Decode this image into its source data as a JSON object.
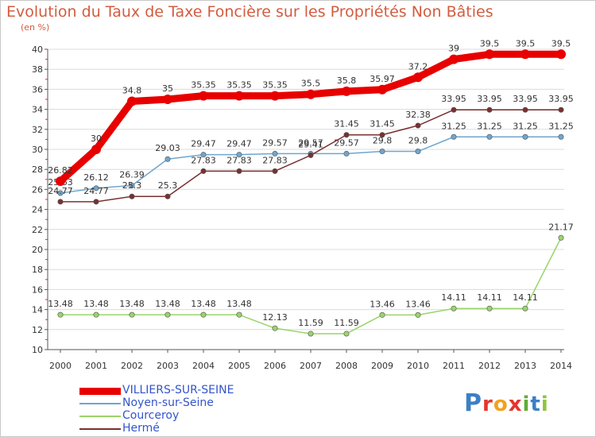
{
  "header": {
    "title": "Evolution du Taux de Taxe Foncière sur les Propriétés Non Bâties",
    "unit": "(en %)"
  },
  "logo": {
    "letters": [
      "P",
      "r",
      "o",
      "x",
      "i",
      "t",
      "i"
    ],
    "colors": [
      "#3d7fc6",
      "#e4352b",
      "#f2a21b",
      "#e4352b",
      "#5dae36",
      "#3d7fc6",
      "#8fc43f"
    ]
  },
  "chart_data": {
    "type": "line",
    "title": "Evolution du Taux de Taxe Foncière sur les Propriétés Non Bâties",
    "ylabel": "(en %)",
    "xlabel": "",
    "categories": [
      "2000",
      "2001",
      "2002",
      "2003",
      "2004",
      "2005",
      "2006",
      "2007",
      "2008",
      "2009",
      "2010",
      "2011",
      "2012",
      "2013",
      "2014"
    ],
    "yticks": [
      "10",
      "12",
      "14",
      "16",
      "18",
      "20",
      "22",
      "24",
      "26",
      "28",
      "30",
      "32",
      "34",
      "36",
      "38",
      "40"
    ],
    "ylim": [
      10,
      40
    ],
    "grid": "horizontal",
    "legend_position": "bottom-left",
    "series": [
      {
        "name": "VILLIERS-SUR-SEINE",
        "color": "#e80000",
        "values": [
          26.82,
          30,
          34.8,
          35,
          35.35,
          35.35,
          35.35,
          35.5,
          35.8,
          35.97,
          37.2,
          39,
          39.5,
          39.5,
          39.5
        ],
        "labels": [
          "26.82",
          "30",
          "34.8",
          "35",
          "35.35",
          "35.35",
          "35.35",
          "35.5",
          "35.8",
          "35.97",
          "37.2",
          "39",
          "39.5",
          "39.5",
          "39.5"
        ]
      },
      {
        "name": "Noyen-sur-Seine",
        "color": "#6fa6cd",
        "values": [
          25.63,
          26.12,
          26.39,
          29.03,
          29.47,
          29.47,
          29.57,
          29.57,
          29.57,
          29.8,
          29.8,
          31.25,
          31.25,
          31.25,
          31.25
        ],
        "labels": [
          "25.63",
          "26.12",
          "26.39",
          "29.03",
          "29.47",
          "29.47",
          "29.57",
          "29.57",
          "29.57",
          "29.8",
          "29.8",
          "31.25",
          "31.25",
          "31.25",
          "31.25"
        ]
      },
      {
        "name": "Courceroy",
        "color": "#9ad46b",
        "values": [
          13.48,
          13.48,
          13.48,
          13.48,
          13.48,
          13.48,
          12.13,
          11.59,
          11.59,
          13.46,
          13.46,
          14.11,
          14.11,
          14.11,
          21.17
        ],
        "labels": [
          "13.48",
          "13.48",
          "13.48",
          "13.48",
          "13.48",
          "13.48",
          "12.13",
          "11.59",
          "11.59",
          "13.46",
          "13.46",
          "14.11",
          "14.11",
          "14.11",
          "21.17"
        ]
      },
      {
        "name": "Hermé",
        "color": "#7a3030",
        "values": [
          24.77,
          24.77,
          25.3,
          25.3,
          27.83,
          27.83,
          27.83,
          29.41,
          31.45,
          31.45,
          32.38,
          33.95,
          33.95,
          33.95,
          33.95
        ],
        "labels": [
          "24.77",
          "24.77",
          "25.3",
          "25.3",
          "27.83",
          "27.83",
          "27.83",
          "29.41",
          "31.45",
          "31.45",
          "32.38",
          "33.95",
          "33.95",
          "33.95",
          "33.95"
        ]
      }
    ]
  }
}
